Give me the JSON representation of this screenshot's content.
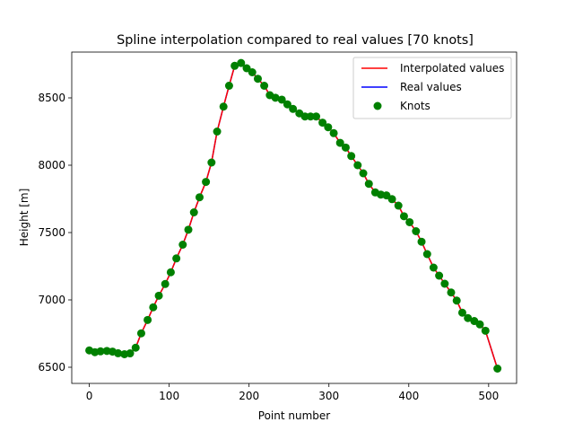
{
  "chart_data": {
    "type": "line",
    "title": "Spline interpolation compared to real values [70 knots]",
    "xlabel": "Point number",
    "ylabel": "Height [m]",
    "xlim": [
      -22,
      535
    ],
    "ylim": [
      6380,
      8840
    ],
    "xticks": [
      0,
      100,
      200,
      300,
      400,
      500
    ],
    "yticks": [
      6500,
      7000,
      7500,
      8000,
      8500
    ],
    "grid": false,
    "legend": {
      "position": "top-right",
      "entries": [
        "Interpolated values",
        "Real values",
        "Knots"
      ]
    },
    "colors": {
      "interpolated": "#ff0000",
      "real": "#0000ff",
      "knots": "#008000"
    },
    "knots": {
      "x": [
        0,
        7,
        14,
        22,
        29,
        36,
        44,
        51,
        58,
        65,
        73,
        80,
        87,
        95,
        102,
        109,
        117,
        124,
        131,
        138,
        146,
        153,
        160,
        168,
        175,
        182,
        190,
        197,
        204,
        211,
        219,
        226,
        233,
        241,
        248,
        255,
        263,
        270,
        277,
        284,
        292,
        299,
        306,
        314,
        321,
        328,
        336,
        343,
        350,
        358,
        365,
        372,
        379,
        387,
        394,
        401,
        409,
        416,
        423,
        431,
        438,
        445,
        453,
        460,
        467,
        474,
        482,
        489,
        496,
        511
      ],
      "y": [
        6625,
        6612,
        6618,
        6621,
        6616,
        6604,
        6597,
        6603,
        6645,
        6752,
        6851,
        6945,
        7031,
        7118,
        7205,
        7308,
        7410,
        7521,
        7650,
        7762,
        7876,
        8020,
        8250,
        8435,
        8590,
        8738,
        8759,
        8720,
        8690,
        8642,
        8590,
        8520,
        8501,
        8487,
        8452,
        8418,
        8385,
        8362,
        8362,
        8362,
        8316,
        8282,
        8238,
        8166,
        8131,
        8068,
        8000,
        7940,
        7862,
        7798,
        7782,
        7776,
        7748,
        7700,
        7621,
        7577,
        7510,
        7432,
        7340,
        7240,
        7180,
        7120,
        7055,
        6995,
        6905,
        6865,
        6843,
        6818,
        6771,
        6490
      ]
    }
  }
}
